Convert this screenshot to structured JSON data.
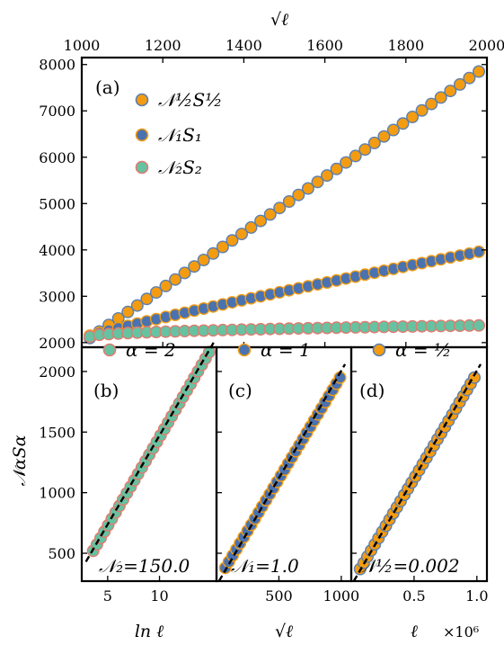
{
  "chart_data": [
    {
      "panel": "(a)",
      "type": "scatter",
      "xlabel": "√ℓ",
      "xlim": [
        1000,
        2000
      ],
      "ylim": [
        1900,
        8150
      ],
      "xticks": [
        "1000",
        "1200",
        "1400",
        "1600",
        "1800",
        "2000"
      ],
      "yticks": [
        "2000",
        "3000",
        "4000",
        "5000",
        "6000",
        "7000",
        "8000"
      ],
      "legend_position": "upper-left",
      "series": [
        {
          "name": "𝒩½ S½",
          "color": "#f39c12",
          "edge": "#5b7fb0",
          "x_start": 1020,
          "x_end": 1980,
          "y_start": 2100,
          "y_end": 7850
        },
        {
          "name": "𝒩₁ S₁",
          "color": "#4a72b0",
          "edge": "#f39c12",
          "x_start": 1020,
          "x_end": 1980,
          "y_start": 2150,
          "y_end": 3960
        },
        {
          "name": "𝒩₂ S₂",
          "color": "#66c2a0",
          "edge": "#e07b6f",
          "x_start": 1020,
          "x_end": 1980,
          "y_start": 2130,
          "y_end": 2370
        }
      ]
    },
    {
      "panel": "(b)",
      "type": "scatter",
      "xlabel": "ln ℓ",
      "ylabel": "𝒩α Sα",
      "xlim": [
        2.5,
        15.5
      ],
      "ylim": [
        270,
        2200
      ],
      "xticks": [
        "5",
        "10"
      ],
      "yticks": [
        "500",
        "1000",
        "1500",
        "2000"
      ],
      "legend": "α = 2",
      "annotation": "𝒩₂=150.0",
      "series": [
        {
          "name": "α = 2",
          "color": "#66c2a0",
          "edge": "#e07b6f",
          "x_start": 3.6,
          "x_end": 14.8,
          "y_start": 520,
          "y_end": 2160
        }
      ],
      "fit_line": {
        "x": [
          2.9,
          15.3
        ],
        "y": [
          430,
          2250
        ]
      }
    },
    {
      "panel": "(c)",
      "type": "scatter",
      "xlabel": "√ℓ",
      "xlim": [
        0,
        1080
      ],
      "ylim": [
        270,
        2200
      ],
      "xticks": [
        "500",
        "1000"
      ],
      "legend": "α = 1",
      "annotation": "𝒩₁=1.0",
      "series": [
        {
          "name": "α = 1",
          "color": "#4a72b0",
          "edge": "#f39c12",
          "x_start": 70,
          "x_end": 990,
          "y_start": 380,
          "y_end": 1950
        }
      ],
      "fit_line": {
        "x": [
          20,
          1030
        ],
        "y": [
          270,
          2060
        ]
      }
    },
    {
      "panel": "(d)",
      "type": "scatter",
      "xlabel": "ℓ",
      "x_multiplier": "×10⁶",
      "xlim": [
        0,
        1.08
      ],
      "ylim": [
        270,
        2200
      ],
      "xticks": [
        "0.5",
        "1.0"
      ],
      "legend": "α = ½",
      "annotation": "𝒩½=0.002",
      "series": [
        {
          "name": "α = ½",
          "color": "#f39c12",
          "edge": "#5b7fb0",
          "x_start": 0.07,
          "x_end": 0.98,
          "y_start": 370,
          "y_end": 1950
        }
      ],
      "fit_line": {
        "x": [
          0.02,
          1.03
        ],
        "y": [
          270,
          2060
        ]
      }
    }
  ],
  "labels": {
    "panel_a": "(a)",
    "panel_b": "(b)",
    "panel_c": "(c)",
    "panel_d": "(d)",
    "top_xlabel": "√ℓ",
    "left_ylabel": "𝒩αSα",
    "b_xlabel": "ln ℓ",
    "c_xlabel": "√ℓ",
    "d_xlabel": "ℓ",
    "d_multiplier": "×10⁶",
    "b_legend": "α = 2",
    "c_legend": "α = 1",
    "d_legend": "α = ½",
    "b_annot": "𝒩₂=150.0",
    "c_annot": "𝒩₁=1.0",
    "d_annot": "𝒩½=0.002",
    "a_legend_1": "𝒩½S½",
    "a_legend_2": "𝒩₁S₁",
    "a_legend_3": "𝒩₂S₂"
  }
}
